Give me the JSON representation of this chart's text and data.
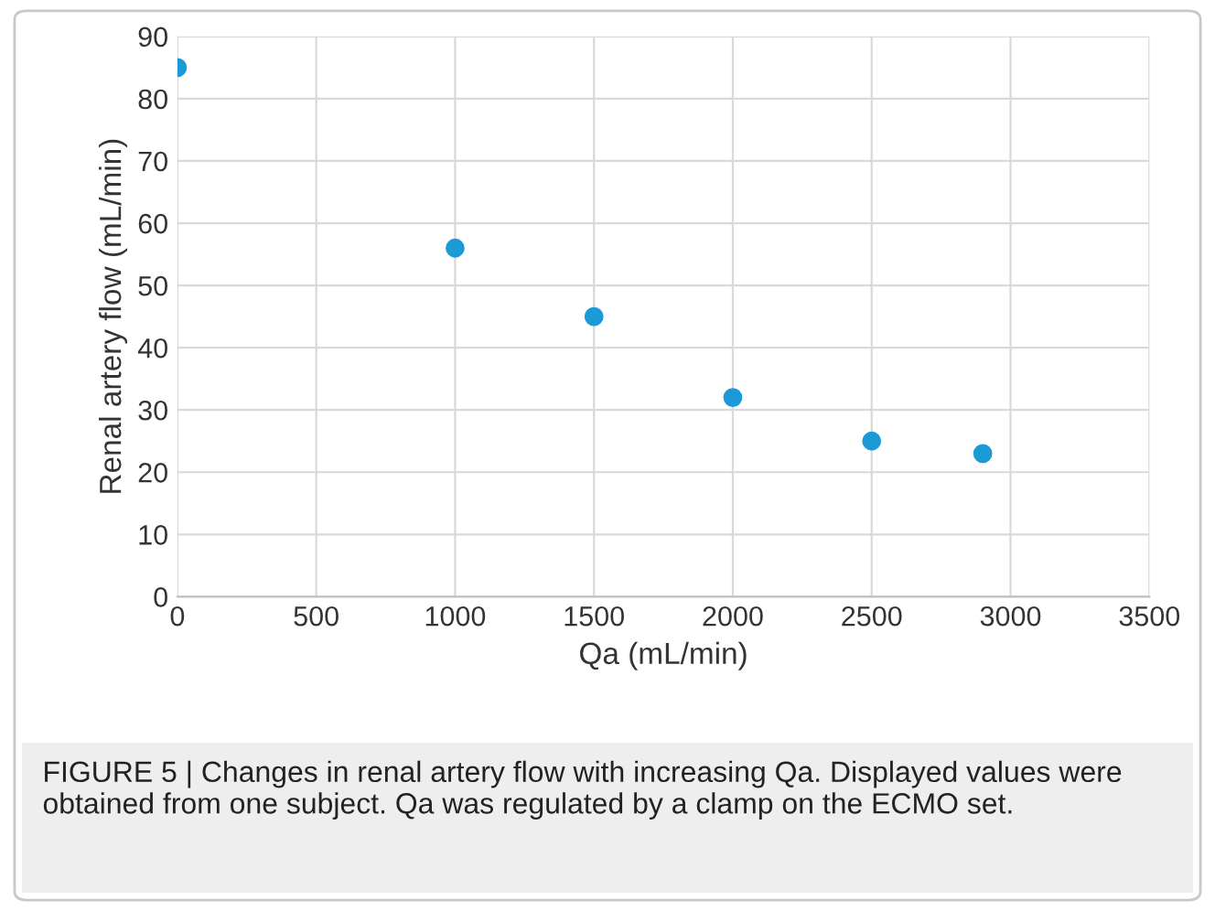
{
  "chart_data": {
    "type": "scatter",
    "xlabel": "Qa (mL/min)",
    "ylabel": "Renal artery flow (mL/min)",
    "x": [
      0,
      1000,
      1500,
      2000,
      2500,
      2900
    ],
    "series": [
      {
        "color": "#1b9ad6",
        "values": [
          85,
          56,
          45,
          32,
          25,
          23
        ]
      }
    ],
    "xlim": [
      0,
      3500
    ],
    "xticks": [
      0,
      500,
      1000,
      1500,
      2000,
      2500,
      3000,
      3500
    ],
    "ylim": [
      0,
      90
    ],
    "yticks": [
      0,
      10,
      20,
      30,
      40,
      50,
      60,
      70,
      80,
      90
    ],
    "grid": true,
    "marker": "circle",
    "annotations": [
      "FIGURE 5 | Changes in renal artery flow with increasing Qa. Displayed values were obtained from one subject. Qa was regulated by a clamp on the ECMO set."
    ]
  }
}
